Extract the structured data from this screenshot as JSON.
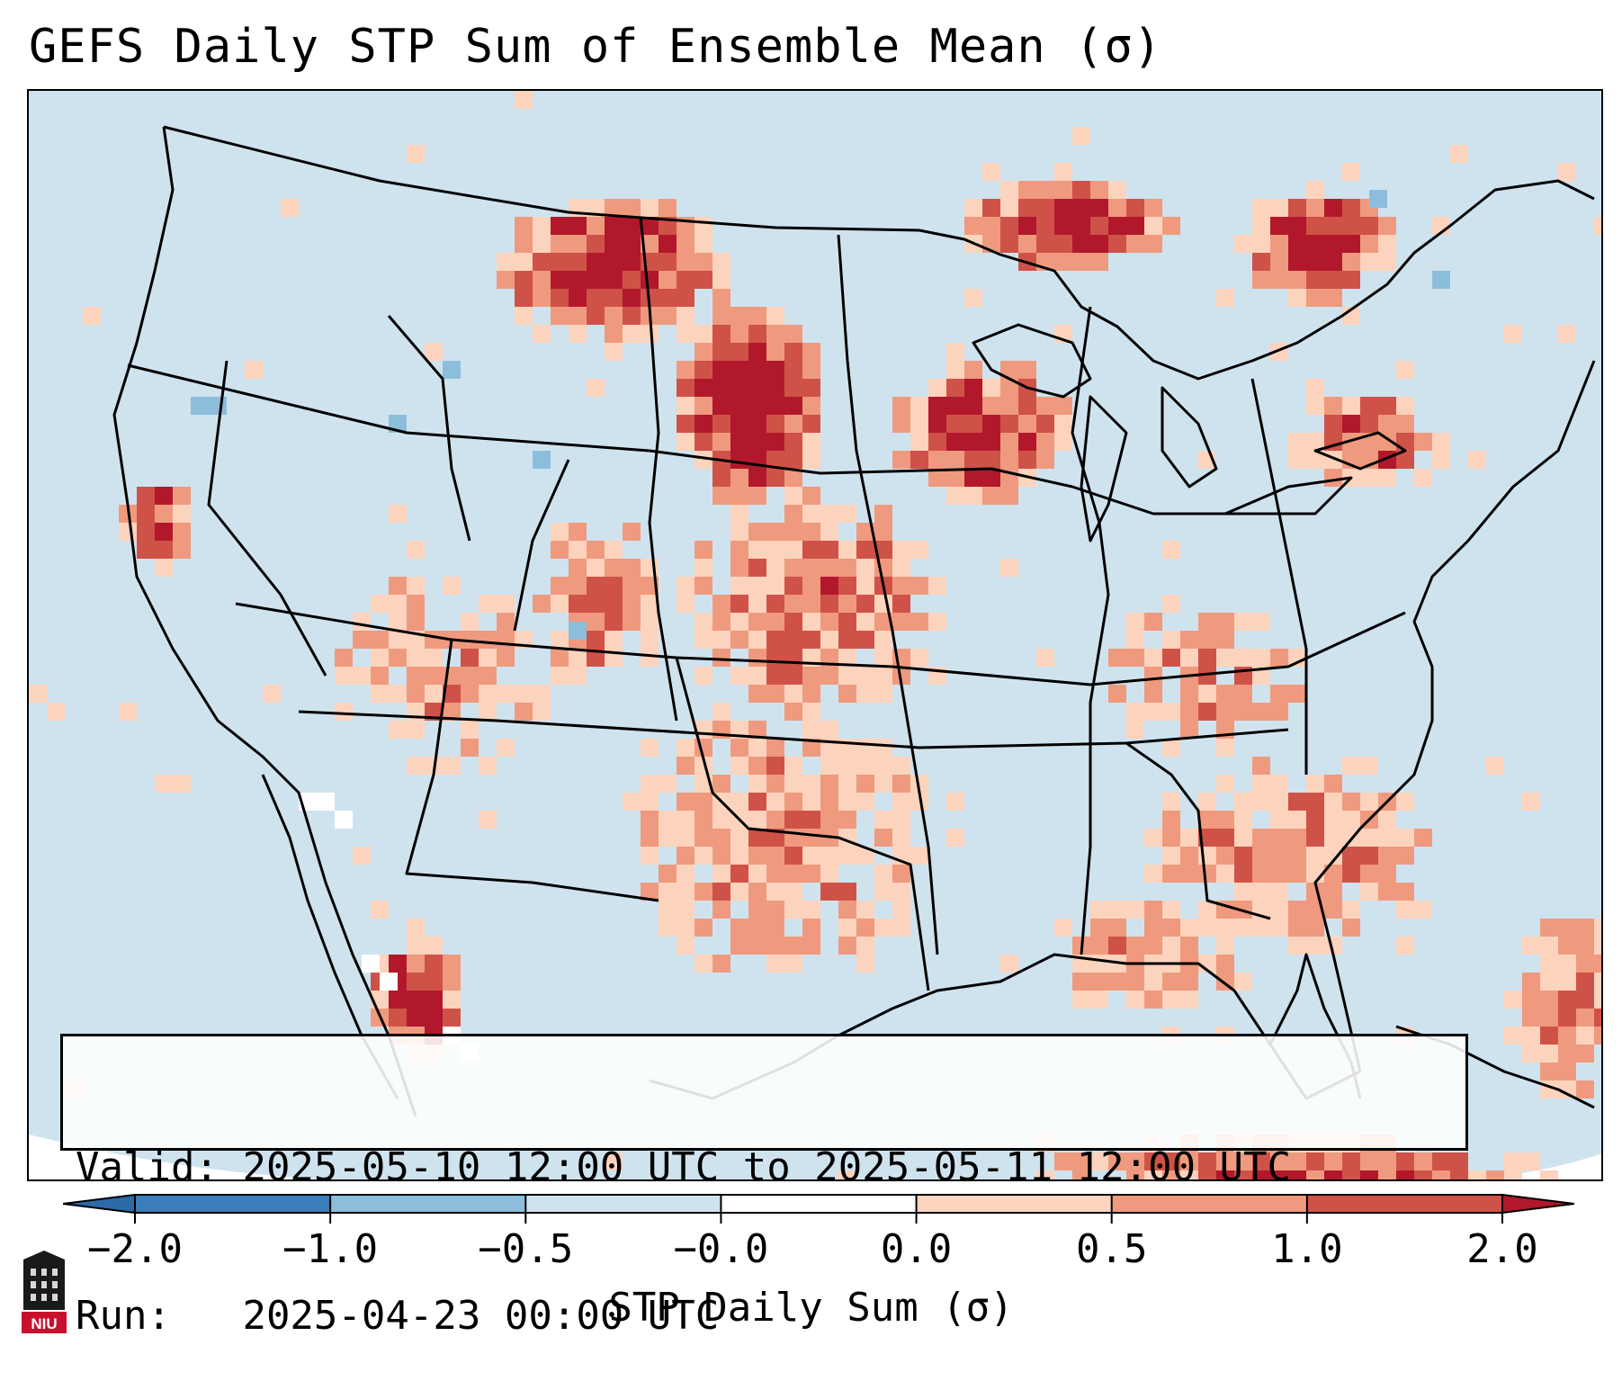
{
  "title": "GEFS Daily STP Sum of Ensemble Mean (σ)",
  "info_box": {
    "valid_label": "Valid:",
    "valid_value": "2025-05-10 12:00 UTC to 2025-05-11 12:00 UTC",
    "run_label": "Run:",
    "run_value": "2025-04-23 00:00 UTC"
  },
  "colorbar": {
    "label": "STP Daily Sum (σ)",
    "ticks": [
      "−2.0",
      "−1.0",
      "−0.5",
      "−0.0",
      "0.0",
      "0.5",
      "1.0",
      "2.0"
    ],
    "bins": [
      {
        "color": "#3a7ebc"
      },
      {
        "color": "#8cbedb"
      },
      {
        "color": "#cfe3ef"
      },
      {
        "color": "#ffffff"
      },
      {
        "color": "#fcd3bd"
      },
      {
        "color": "#ef9a7e"
      },
      {
        "color": "#cf5249"
      }
    ],
    "under_color": "#2c6aa8",
    "over_color": "#b2182b"
  },
  "logo": {
    "text": "NIU"
  }
}
